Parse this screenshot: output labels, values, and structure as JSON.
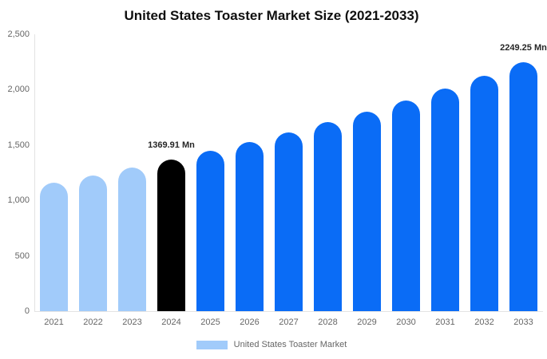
{
  "chart_data": {
    "type": "bar",
    "title": "United States Toaster Market Size (2021-2033)",
    "categories": [
      "2021",
      "2022",
      "2023",
      "2024",
      "2025",
      "2026",
      "2027",
      "2028",
      "2029",
      "2030",
      "2031",
      "2032",
      "2033"
    ],
    "values": [
      1161,
      1227,
      1297,
      1369.91,
      1447,
      1529,
      1615,
      1706,
      1802,
      1904,
      2011,
      2125,
      2249.25
    ],
    "bar_colors": [
      "#a1cbfa",
      "#a1cbfa",
      "#a1cbfa",
      "#000000",
      "#0a6cf6",
      "#0a6cf6",
      "#0a6cf6",
      "#0a6cf6",
      "#0a6cf6",
      "#0a6cf6",
      "#0a6cf6",
      "#0a6cf6",
      "#0a6cf6"
    ],
    "data_labels": {
      "3": "1369.91 Mn",
      "12": "2249.25 Mn"
    },
    "ylim": [
      0,
      2500
    ],
    "ytick_values": [
      0,
      500,
      1000,
      1500,
      2000,
      2500
    ],
    "ytick_labels": [
      "0",
      "500",
      "1,000",
      "1,500",
      "2,000",
      "2,500"
    ],
    "xlabel": "",
    "ylabel": "",
    "grid": false,
    "legend_position": "bottom"
  },
  "legend": {
    "label": "United States Toaster Market",
    "color": "#a1cbfa"
  },
  "colors": {
    "series_past": "#a1cbfa",
    "series_base_year": "#000000",
    "series_forecast": "#0a6cf6",
    "axis_line": "#e3e3e3",
    "tick_text": "#666666",
    "title_text": "#0f0f0f",
    "data_label_text": "#262626"
  }
}
